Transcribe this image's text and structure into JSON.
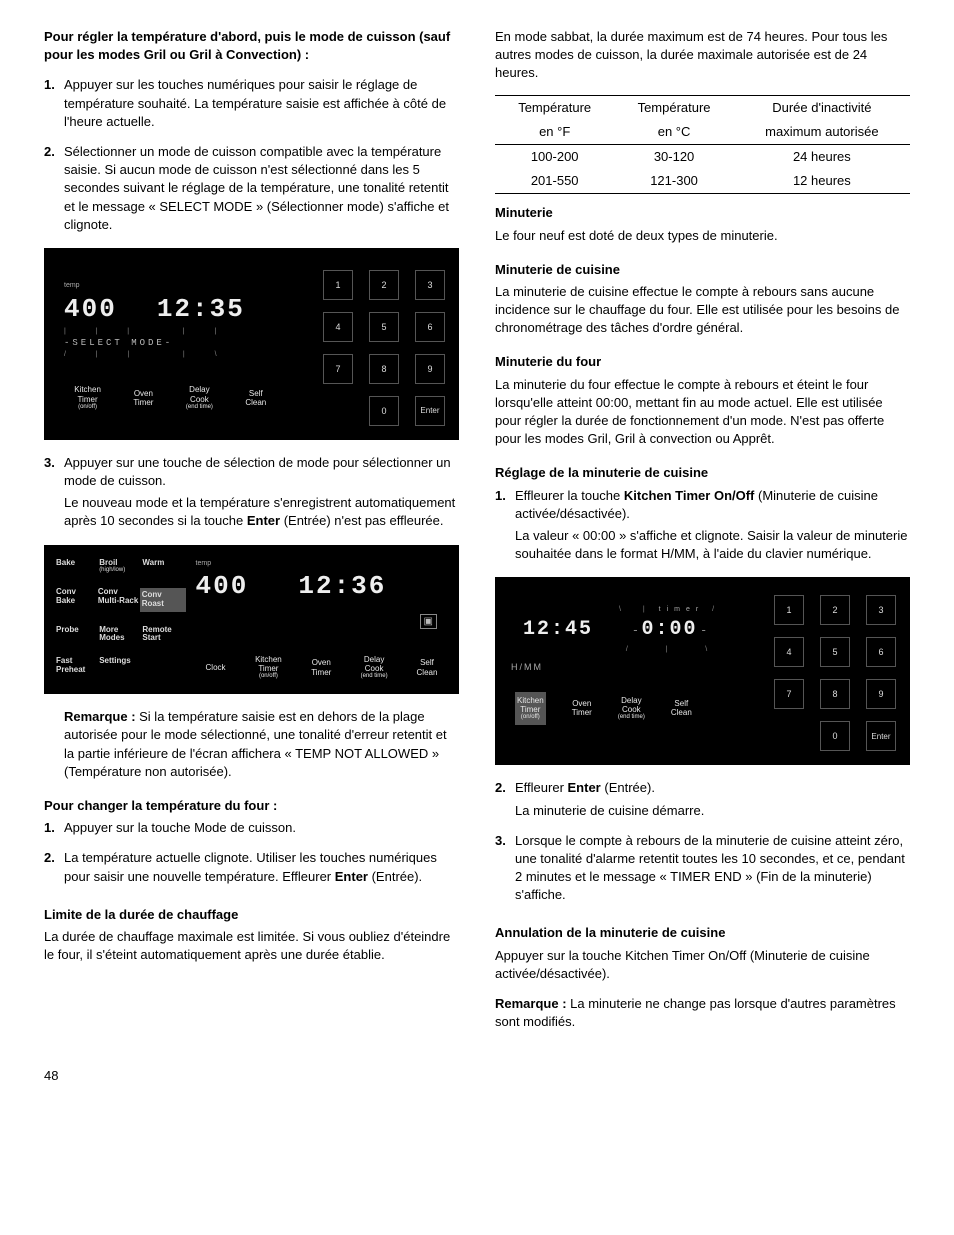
{
  "page_number": "48",
  "colors": {
    "panel_bg": "#000000",
    "panel_text": "#e8e8e8",
    "highlight": "#555555"
  },
  "left": {
    "h1": "Pour régler la température d'abord, puis le mode de cuisson (sauf pour les modes Gril ou Gril à Convection) :",
    "steps1": [
      "Appuyer sur les touches numériques pour saisir le réglage de température souhaité. La température saisie est affichée à côté de l'heure actuelle.",
      "Sélectionner un mode de cuisson compatible avec la température saisie. Si aucun mode de cuisson n'est sélectionné dans les 5 secondes suivant le réglage de la température, une tonalité retentit et le message « SELECT MODE » (Sélectionner mode) s'affiche et clignote."
    ],
    "panel1": {
      "temp_label": "temp",
      "temp_value": "400",
      "clock": "12:35",
      "select_mode": "-SELECT MODE-",
      "keypad": [
        [
          "1",
          "2",
          "3"
        ],
        [
          "4",
          "5",
          "6"
        ],
        [
          "7",
          "8",
          "9"
        ],
        [
          "",
          "0",
          "Enter"
        ]
      ],
      "bottom_buttons": [
        {
          "l1": "Kitchen",
          "l2": "Timer",
          "sub": "(on/off)"
        },
        {
          "l1": "Oven",
          "l2": "Timer"
        },
        {
          "l1": "Delay",
          "l2": "Cook",
          "sub": "(end time)"
        },
        {
          "l1": "Self",
          "l2": "Clean"
        }
      ]
    },
    "step3a": "Appuyer sur une touche de sélection de mode pour sélectionner un mode de cuisson.",
    "step3b_pre": "Le nouveau mode et la température s'enregistrent automatiquement après 10 secondes si la touche ",
    "step3b_bold": "Enter",
    "step3b_post": " (Entrée) n'est pas effleurée.",
    "panel2": {
      "modes": [
        [
          {
            "l1": "Bake"
          },
          {
            "l1": "Broil",
            "sub": "(high/low)"
          },
          {
            "l1": "Warm"
          }
        ],
        [
          {
            "l1": "Conv",
            "l2": "Bake"
          },
          {
            "l1": "Conv",
            "l2": "Multi-Rack"
          },
          {
            "l1": "Conv",
            "l2": "Roast",
            "hl": true
          }
        ],
        [
          {
            "l1": "Probe"
          },
          {
            "l1": "More",
            "l2": "Modes"
          },
          {
            "l1": "Remote",
            "l2": "Start"
          }
        ],
        [
          {
            "l1": "Fast",
            "l2": "Preheat"
          },
          {
            "l1": "Settings"
          },
          {
            "l1": ""
          }
        ]
      ],
      "temp_label": "temp",
      "temp_value": "400",
      "clock": "12:36",
      "bottom_buttons": [
        {
          "l1": "Clock"
        },
        {
          "l1": "Kitchen",
          "l2": "Timer",
          "sub": "(on/off)"
        },
        {
          "l1": "Oven",
          "l2": "Timer"
        },
        {
          "l1": "Delay",
          "l2": "Cook",
          "sub": "(end time)"
        },
        {
          "l1": "Self",
          "l2": "Clean"
        }
      ]
    },
    "remarque_label": "Remarque : ",
    "remarque_text": "Si la température saisie est en dehors de la plage autorisée pour le mode sélectionné, une tonalité d'erreur retentit et la partie inférieure de l'écran affichera « TEMP NOT ALLOWED » (Température non autorisée).",
    "h_change": "Pour changer la température du four :",
    "change_steps": [
      "Appuyer sur la touche Mode de cuisson.",
      "La température actuelle clignote. Utiliser les touches numériques pour saisir une nouvelle température. Effleurer "
    ],
    "change_step2_bold": "Enter",
    "change_step2_post": " (Entrée).",
    "h_limit": "Limite de la durée de chauffage",
    "limit_text": "La durée de chauffage maximale est limitée. Si vous oubliez d'éteindre le four, il s'éteint automatiquement après une durée établie."
  },
  "right": {
    "intro": "En mode sabbat, la durée maximum est de 74 heures. Pour tous les autres modes de cuisson, la durée maximale autorisée est de 24 heures.",
    "table": {
      "head": [
        [
          "Température",
          "Température",
          "Durée d'inactivité"
        ],
        [
          "en °F",
          "en °C",
          "maximum autorisée"
        ]
      ],
      "rows": [
        [
          "100-200",
          "30-120",
          "24 heures"
        ],
        [
          "201-550",
          "121-300",
          "12 heures"
        ]
      ]
    },
    "h_minuterie": "Minuterie",
    "minuterie_p": "Le four neuf est doté de deux types de minuterie.",
    "h_mcuisine": "Minuterie de cuisine",
    "mcuisine_p": "La minuterie de cuisine effectue le compte à rebours sans aucune incidence sur le chauffage du four. Elle est utilisée pour les besoins de chronométrage des tâches d'ordre général.",
    "h_mfour": "Minuterie du four",
    "mfour_p": "La minuterie du four effectue le compte à rebours et éteint le four lorsqu'elle atteint 00:00, mettant fin au mode actuel. Elle est utilisée pour régler la durée de fonctionnement d'un mode. N'est pas offerte pour les modes Gril, Gril à convection ou Apprêt.",
    "h_reglage": "Réglage de la minuterie de cuisine",
    "reg_step1_pre": "Effleurer la touche ",
    "reg_step1_bold": "Kitchen Timer On/Off",
    "reg_step1_post": " (Minuterie de cuisine activée/désactivée).",
    "reg_step1_p2": "La valeur « 00:00 » s'affiche et clignote. Saisir la valeur de minuterie souhaitée dans le format H/MM, à l'aide du clavier numérique.",
    "panel3": {
      "clock": "12:45",
      "timer_label": "timer",
      "timer_value": "0:00",
      "hmm": "H/MM",
      "keypad": [
        [
          "1",
          "2",
          "3"
        ],
        [
          "4",
          "5",
          "6"
        ],
        [
          "7",
          "8",
          "9"
        ],
        [
          "",
          "0",
          "Enter"
        ]
      ],
      "bottom_buttons": [
        {
          "l1": "Kitchen",
          "l2": "Timer",
          "sub": "(on/off)",
          "hl": true
        },
        {
          "l1": "Oven",
          "l2": "Timer"
        },
        {
          "l1": "Delay",
          "l2": "Cook",
          "sub": "(end time)"
        },
        {
          "l1": "Self",
          "l2": "Clean"
        }
      ]
    },
    "reg_step2_pre": "Effleurer ",
    "reg_step2_bold": "Enter",
    "reg_step2_post": " (Entrée).",
    "reg_step2_p2": "La minuterie de cuisine démarre.",
    "reg_step3": "Lorsque le compte à rebours de la minuterie de cuisine atteint zéro, une tonalité d'alarme retentit toutes les 10 secondes, et ce, pendant 2 minutes et le message « TIMER END » (Fin de la minuterie) s'affiche.",
    "h_annul": "Annulation de la minuterie de cuisine",
    "annul_p": "Appuyer sur la touche Kitchen Timer On/Off (Minuterie de cuisine activée/désactivée).",
    "rem2_label": "Remarque : ",
    "rem2_text": "La minuterie ne change pas lorsque d'autres paramètres sont modifiés."
  }
}
